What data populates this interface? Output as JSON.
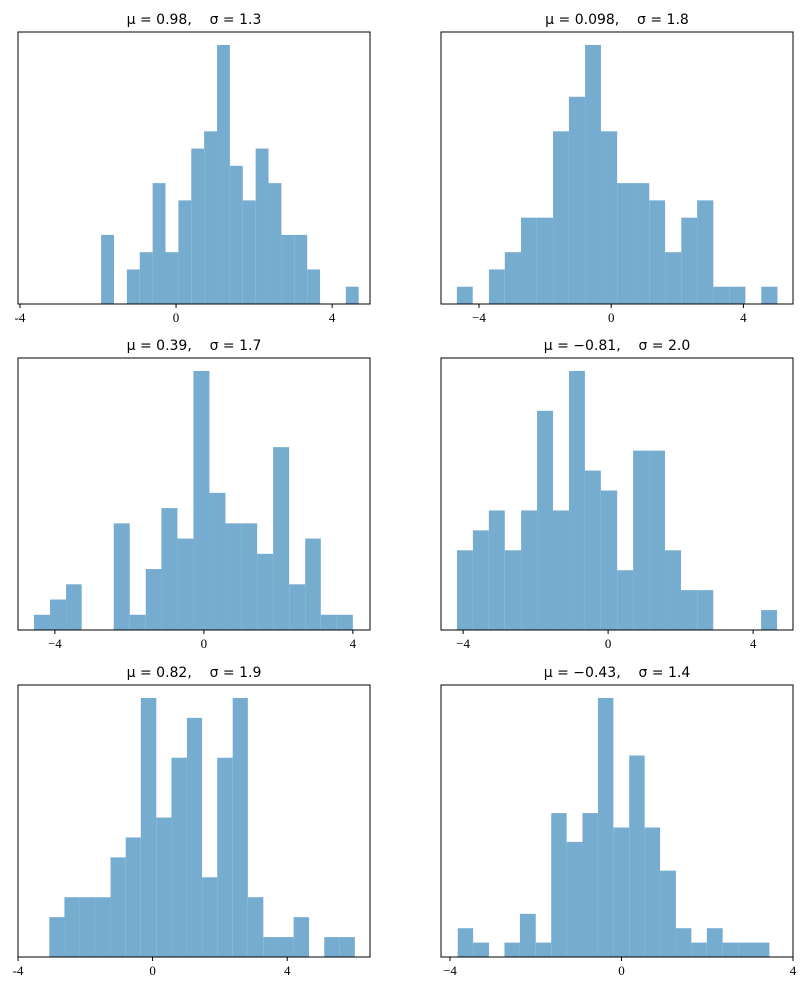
{
  "chart_data": [
    {
      "type": "histogram",
      "title": "μ = 0.98,    σ = 1.3",
      "color": "#77acd1",
      "bins": [
        -1.92,
        -1.59,
        -1.26,
        -0.93,
        -0.6,
        -0.27,
        0.06,
        0.39,
        0.72,
        1.05,
        1.38,
        1.71,
        2.04,
        2.37,
        2.7,
        3.03,
        3.36,
        3.69,
        4.02,
        4.35,
        4.68
      ],
      "counts": [
        4,
        0,
        2,
        3,
        7,
        3,
        6,
        9,
        10,
        15,
        8,
        6,
        9,
        7,
        4,
        4,
        2,
        0,
        0,
        1
      ],
      "xlim": [
        -4.05,
        4.97
      ],
      "ylim": [
        0,
        15.75
      ],
      "xticks": [
        {
          "value": -4,
          "label": "-4"
        },
        0,
        4
      ]
    },
    {
      "type": "histogram",
      "title": "μ = 0.098,    σ = 1.8",
      "color": "#77acd1",
      "bins": [
        -4.67,
        -4.19,
        -3.7,
        -3.22,
        -2.73,
        -2.25,
        -1.76,
        -1.28,
        -0.79,
        -0.31,
        0.18,
        0.66,
        1.15,
        1.63,
        2.12,
        2.6,
        3.09,
        3.57,
        4.06,
        4.54,
        5.03
      ],
      "counts": [
        1,
        0,
        2,
        3,
        5,
        5,
        10,
        12,
        15,
        10,
        7,
        7,
        6,
        3,
        5,
        6,
        1,
        1,
        0,
        1
      ],
      "xlim": [
        -5.15,
        5.5
      ],
      "ylim": [
        0,
        15.75
      ],
      "xticks": [
        {
          "value": -4,
          "label": "−4"
        },
        0,
        4
      ]
    },
    {
      "type": "histogram",
      "title": "μ = 0.39,    σ = 1.7",
      "color": "#77acd1",
      "bins": [
        -4.56,
        -4.13,
        -3.7,
        -3.28,
        -2.85,
        -2.42,
        -1.99,
        -1.56,
        -1.14,
        -0.71,
        -0.28,
        0.15,
        0.58,
        1.0,
        1.43,
        1.86,
        2.29,
        2.72,
        3.14,
        3.57,
        4.0
      ],
      "counts": [
        1,
        2,
        3,
        0,
        0,
        7,
        1,
        4,
        8,
        6,
        17,
        9,
        7,
        7,
        5,
        12,
        3,
        6,
        1,
        1
      ],
      "xlim": [
        -4.99,
        4.46
      ],
      "ylim": [
        0,
        17.85
      ],
      "xticks": [
        {
          "value": -4,
          "label": "−4"
        },
        0,
        4
      ]
    },
    {
      "type": "histogram",
      "title": "μ = −0.81,    σ = 2.0",
      "color": "#77acd1",
      "bins": [
        -4.17,
        -3.73,
        -3.29,
        -2.85,
        -2.4,
        -1.96,
        -1.52,
        -1.08,
        -0.64,
        -0.2,
        0.25,
        0.69,
        1.13,
        1.57,
        2.01,
        2.46,
        2.9,
        3.34,
        3.78,
        4.22,
        4.66
      ],
      "counts": [
        4,
        5,
        6,
        4,
        6,
        11,
        6,
        13,
        8,
        7,
        3,
        9,
        9,
        4,
        2,
        2,
        0,
        0,
        0,
        1
      ],
      "xlim": [
        -4.61,
        5.1
      ],
      "ylim": [
        0,
        13.65
      ],
      "xticks": [
        {
          "value": -4,
          "label": "−4"
        },
        0,
        4
      ]
    },
    {
      "type": "histogram",
      "title": "μ = 0.82,    σ = 1.9",
      "color": "#77acd1",
      "bins": [
        -3.07,
        -2.62,
        -2.16,
        -1.71,
        -1.25,
        -0.8,
        -0.35,
        0.11,
        0.56,
        1.02,
        1.47,
        1.92,
        2.38,
        2.83,
        3.29,
        3.74,
        4.19,
        4.65,
        5.1,
        5.56,
        6.01
      ],
      "counts": [
        2,
        3,
        3,
        3,
        5,
        6,
        13,
        7,
        10,
        12,
        4,
        10,
        13,
        3,
        1,
        1,
        2,
        0,
        1,
        1
      ],
      "xlim": [
        -4.0,
        6.46
      ],
      "ylim": [
        0,
        13.65
      ],
      "xticks": [
        {
          "value": -4,
          "label": "-4"
        },
        0,
        4
      ]
    },
    {
      "type": "histogram",
      "title": "μ = −0.43,    σ = 1.4",
      "color": "#77acd1",
      "bins": [
        -3.82,
        -3.46,
        -3.09,
        -2.73,
        -2.37,
        -2.0,
        -1.64,
        -1.28,
        -0.91,
        -0.55,
        -0.19,
        0.18,
        0.54,
        0.9,
        1.27,
        1.63,
        1.99,
        2.36,
        2.72,
        3.09,
        3.45
      ],
      "counts": [
        2,
        1,
        0,
        1,
        3,
        1,
        10,
        8,
        10,
        18,
        9,
        14,
        9,
        6,
        2,
        1,
        2,
        1,
        1,
        1
      ],
      "xlim": [
        -4.21,
        4.0
      ],
      "ylim": [
        0,
        18.9
      ],
      "xticks": [
        {
          "value": -4,
          "label": "−4"
        },
        0,
        4
      ]
    }
  ]
}
